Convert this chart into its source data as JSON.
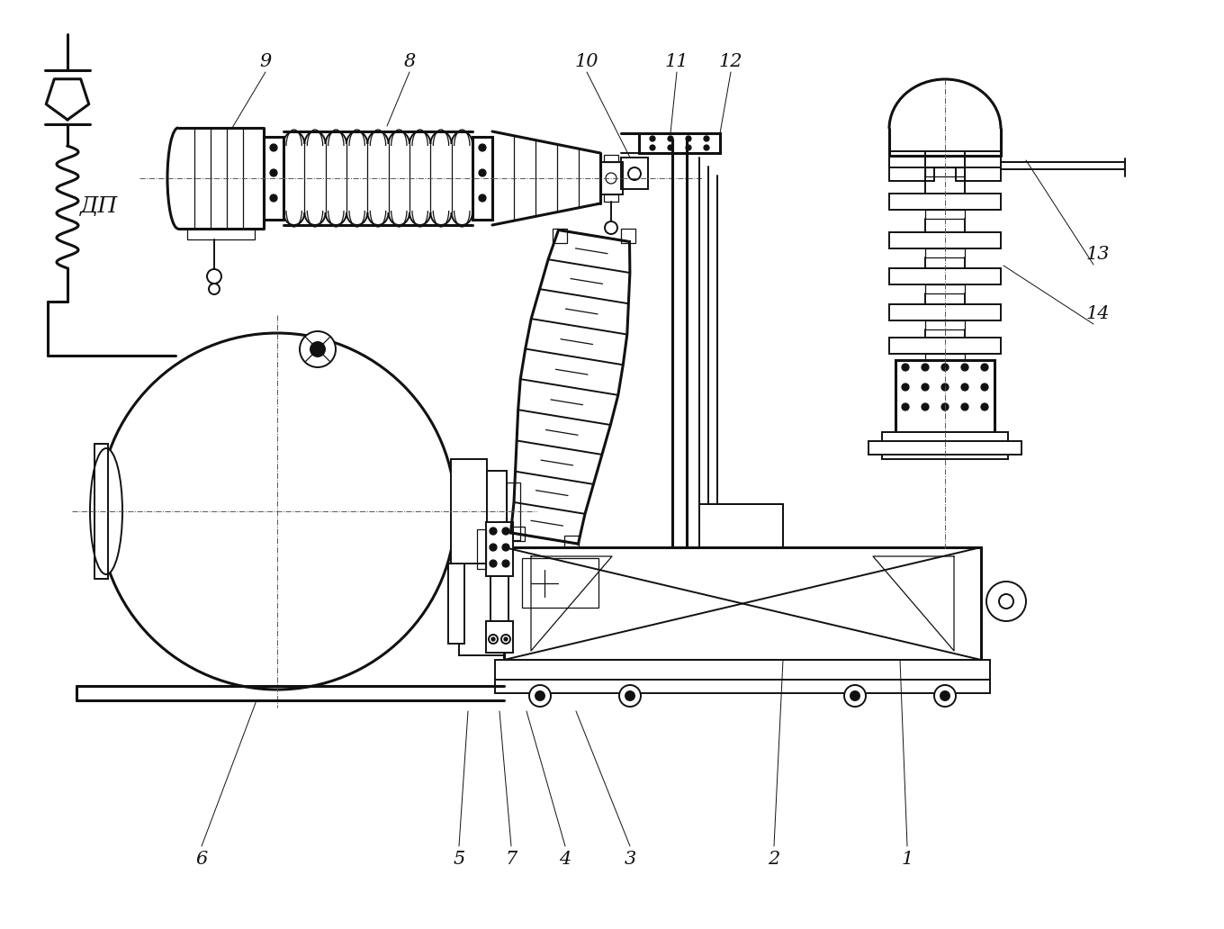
{
  "bg_color": "#ffffff",
  "line_color": "#111111",
  "lw_thick": 2.2,
  "lw_main": 1.4,
  "lw_thin": 0.9,
  "lw_hair": 0.7,
  "figsize": [
    13.6,
    10.32
  ],
  "dpi": 100,
  "label_fs": 15,
  "dp_fs": 18
}
